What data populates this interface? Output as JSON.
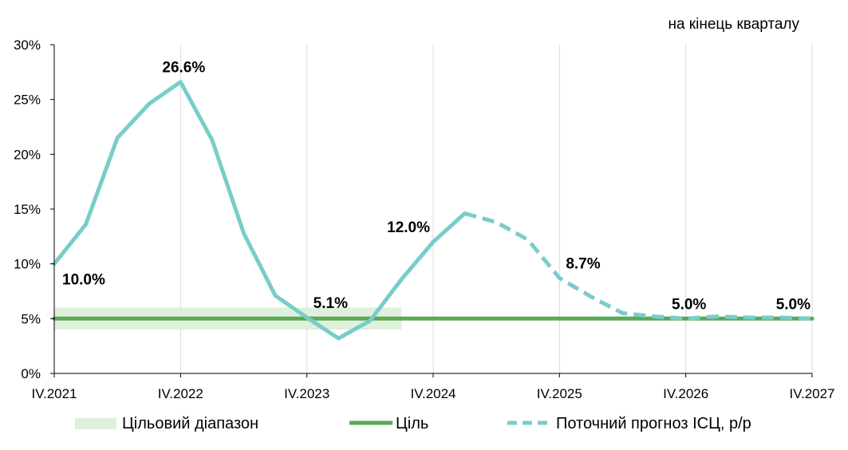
{
  "chart_data": {
    "type": "line",
    "note": "на кінець кварталу",
    "x_tick_labels": [
      "IV.2021",
      "IV.2022",
      "IV.2023",
      "IV.2024",
      "IV.2025",
      "IV.2026",
      "IV.2027"
    ],
    "y_tick_labels": [
      "0%",
      "5%",
      "10%",
      "15%",
      "20%",
      "25%",
      "30%"
    ],
    "ylim": [
      0,
      30
    ],
    "y_ticks": [
      0,
      5,
      10,
      15,
      20,
      25,
      30
    ],
    "grid": "vertical",
    "legend_position": "bottom",
    "colors": {
      "actual": "#79cdc8",
      "forecast": "#79cdc8",
      "target": "#5aaa55",
      "target_range": "#dff0dc",
      "grid": "#d9d9d9",
      "axis": "#000000"
    },
    "target_range": {
      "low": 4,
      "high": 6,
      "x_from": 0,
      "x_to": 11
    },
    "series": [
      {
        "key": "actual",
        "style": "solid",
        "x": [
          0,
          1,
          2,
          3,
          4,
          5,
          6,
          7,
          8,
          9,
          10,
          11,
          12,
          13
        ],
        "values": [
          10.0,
          13.6,
          21.5,
          24.6,
          26.6,
          21.3,
          12.8,
          7.1,
          5.1,
          3.2,
          4.8,
          8.6,
          12.0,
          14.6
        ]
      },
      {
        "key": "forecast",
        "name": "Поточний прогноз ІСЦ, р/р",
        "style": "dashed",
        "x": [
          13,
          14,
          15,
          16,
          17,
          18,
          19,
          20,
          21,
          22,
          23,
          24
        ],
        "values": [
          14.6,
          13.8,
          12.2,
          8.7,
          7.0,
          5.5,
          5.2,
          5.0,
          5.2,
          5.1,
          5.1,
          5.0
        ]
      },
      {
        "key": "target",
        "name": "Ціль",
        "style": "solid",
        "x": [
          0,
          24
        ],
        "values": [
          5.0,
          5.0
        ]
      }
    ],
    "data_labels": [
      {
        "x": 0,
        "y": 10.0,
        "text": "10.0%",
        "pos": "below-right"
      },
      {
        "x": 4,
        "y": 26.6,
        "text": "26.6%",
        "pos": "above"
      },
      {
        "x": 8,
        "y": 5.1,
        "text": "5.1%",
        "pos": "above-right"
      },
      {
        "x": 12,
        "y": 12.0,
        "text": "12.0%",
        "pos": "above-left"
      },
      {
        "x": 16,
        "y": 8.7,
        "text": "8.7%",
        "pos": "above-right"
      },
      {
        "x": 20,
        "y": 5.0,
        "text": "5.0%",
        "pos": "above"
      },
      {
        "x": 24,
        "y": 5.0,
        "text": "5.0%",
        "pos": "above-left"
      }
    ],
    "legend": [
      {
        "key": "target_range",
        "label": "Цільовий діапазон",
        "marker": "band"
      },
      {
        "key": "target",
        "label": "Ціль",
        "marker": "solid-line"
      },
      {
        "key": "forecast",
        "label": "Поточний прогноз ІСЦ, р/р",
        "marker": "dashed-line"
      }
    ]
  }
}
